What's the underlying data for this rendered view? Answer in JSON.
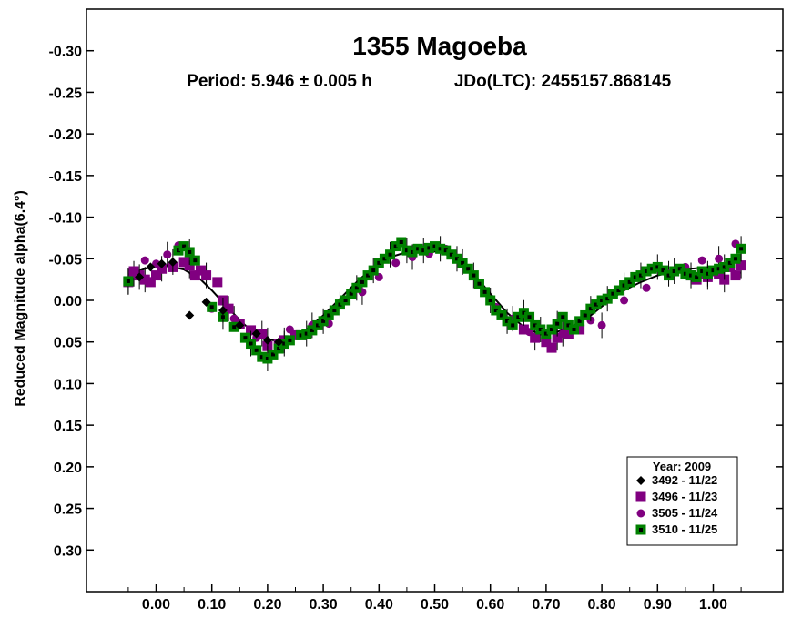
{
  "chart_data": {
    "type": "scatter",
    "title": "1355 Magoeba",
    "subtitle_period": "Period: 5.946 ± 0.005 h",
    "subtitle_epoch": "JDo(LTC): 2455157.868145",
    "ylabel": "Reduced Magnitude alpha(6.4°)",
    "xlabel": "",
    "xlim": [
      -0.125,
      1.125
    ],
    "ylim": [
      0.35,
      -0.35
    ],
    "y_inverted": true,
    "x_ticks": [
      0.0,
      0.1,
      0.2,
      0.3,
      0.4,
      0.5,
      0.6,
      0.7,
      0.8,
      0.9,
      1.0
    ],
    "x_tick_labels": [
      "0.00",
      "0.10",
      "0.20",
      "0.30",
      "0.40",
      "0.50",
      "0.60",
      "0.70",
      "0.80",
      "0.90",
      "1.00"
    ],
    "y_ticks": [
      -0.3,
      -0.25,
      -0.2,
      -0.15,
      -0.1,
      -0.05,
      0.0,
      0.05,
      0.1,
      0.15,
      0.2,
      0.25,
      0.3
    ],
    "y_tick_labels": [
      "-0.30",
      "-0.25",
      "-0.20",
      "-0.15",
      "-0.10",
      "-0.05",
      "0.00",
      "0.05",
      "0.10",
      "0.15",
      "0.20",
      "0.25",
      "0.30"
    ],
    "grid": false,
    "legend": {
      "title": "Year: 2009",
      "placement": "bottom-right",
      "entries": [
        {
          "label": "3492 - 11/22",
          "marker": "diamond",
          "color": "#000000"
        },
        {
          "label": "3496 - 11/23",
          "marker": "square",
          "color": "#800080"
        },
        {
          "label": "3505 - 11/24",
          "marker": "circle",
          "color": "#800080"
        },
        {
          "label": "3510 - 11/25",
          "marker": "square-dot",
          "color": "#008000"
        }
      ]
    },
    "fit_curve": {
      "x": [
        -0.05,
        -0.02,
        0.0,
        0.02,
        0.05,
        0.08,
        0.1,
        0.13,
        0.16,
        0.19,
        0.21,
        0.24,
        0.27,
        0.3,
        0.33,
        0.36,
        0.39,
        0.42,
        0.45,
        0.48,
        0.51,
        0.54,
        0.57,
        0.6,
        0.63,
        0.66,
        0.69,
        0.72,
        0.75,
        0.78,
        0.81,
        0.84,
        0.87,
        0.9,
        0.93,
        0.96,
        0.99,
        1.02,
        1.05
      ],
      "y": [
        -0.031,
        -0.038,
        -0.041,
        -0.042,
        -0.037,
        -0.025,
        -0.012,
        0.01,
        0.03,
        0.044,
        0.048,
        0.045,
        0.035,
        0.018,
        -0.002,
        -0.022,
        -0.04,
        -0.052,
        -0.058,
        -0.06,
        -0.058,
        -0.05,
        -0.032,
        -0.008,
        0.015,
        0.032,
        0.041,
        0.038,
        0.03,
        0.018,
        0.002,
        -0.012,
        -0.022,
        -0.03,
        -0.035,
        -0.038,
        -0.04,
        -0.038,
        -0.033
      ],
      "color": "#000000"
    },
    "series": [
      {
        "name": "3492 - 11/22",
        "marker": "diamond",
        "color": "#000000",
        "x": [
          -0.03,
          -0.01,
          0.01,
          0.03,
          0.06,
          0.09,
          0.12,
          0.15,
          0.18,
          0.2,
          0.22
        ],
        "y": [
          -0.028,
          -0.04,
          -0.044,
          -0.046,
          0.018,
          0.002,
          0.012,
          0.03,
          0.04,
          0.048,
          0.05
        ]
      },
      {
        "name": "3496 - 11/23",
        "marker": "square",
        "color": "#800080",
        "x": [
          -0.05,
          -0.04,
          -0.03,
          -0.02,
          -0.01,
          0.0,
          0.01,
          0.03,
          0.05,
          0.06,
          0.07,
          0.08,
          0.09,
          0.11,
          0.12,
          0.13,
          0.15,
          0.17,
          0.19,
          0.2,
          0.22,
          0.23,
          0.25,
          0.66,
          0.68,
          0.7,
          0.71,
          0.72,
          0.74,
          0.76,
          0.96,
          0.97,
          0.98,
          0.99,
          1.0,
          1.01,
          1.02,
          1.03,
          1.04,
          1.05
        ],
        "y": [
          -0.022,
          -0.035,
          -0.03,
          -0.025,
          -0.022,
          -0.03,
          -0.038,
          -0.04,
          -0.046,
          -0.042,
          -0.03,
          -0.036,
          -0.03,
          -0.022,
          0.0,
          0.01,
          0.028,
          0.036,
          0.04,
          0.055,
          0.052,
          0.048,
          0.042,
          0.035,
          0.045,
          0.05,
          0.057,
          0.045,
          0.04,
          0.035,
          -0.03,
          -0.025,
          -0.032,
          -0.028,
          -0.035,
          -0.032,
          -0.025,
          -0.04,
          -0.03,
          -0.042
        ]
      },
      {
        "name": "3505 - 11/24",
        "marker": "circle",
        "color": "#800080",
        "x": [
          -0.04,
          -0.02,
          0.0,
          0.02,
          0.04,
          0.1,
          0.14,
          0.18,
          0.24,
          0.28,
          0.31,
          0.34,
          0.37,
          0.4,
          0.43,
          0.46,
          0.49,
          0.52,
          0.55,
          0.58,
          0.61,
          0.64,
          0.67,
          0.7,
          0.73,
          0.76,
          0.78,
          0.8,
          0.84,
          0.88,
          0.92,
          0.95,
          0.98,
          1.01,
          1.04
        ],
        "y": [
          -0.032,
          -0.048,
          -0.044,
          -0.055,
          -0.066,
          0.01,
          0.022,
          0.045,
          0.035,
          0.03,
          0.028,
          0.0,
          -0.01,
          -0.028,
          -0.045,
          -0.052,
          -0.056,
          -0.062,
          -0.046,
          -0.02,
          0.008,
          0.022,
          0.038,
          0.042,
          0.04,
          0.032,
          0.024,
          0.03,
          0.0,
          -0.015,
          -0.032,
          -0.04,
          -0.048,
          -0.05,
          -0.068
        ]
      },
      {
        "name": "3510 - 11/25",
        "marker": "square-dot",
        "color": "#008000",
        "x": [
          -0.05,
          0.04,
          0.05,
          0.06,
          0.07,
          0.1,
          0.12,
          0.14,
          0.16,
          0.17,
          0.18,
          0.19,
          0.2,
          0.21,
          0.22,
          0.23,
          0.24,
          0.26,
          0.27,
          0.28,
          0.29,
          0.3,
          0.31,
          0.32,
          0.33,
          0.34,
          0.35,
          0.36,
          0.37,
          0.38,
          0.39,
          0.4,
          0.41,
          0.42,
          0.43,
          0.44,
          0.45,
          0.46,
          0.47,
          0.48,
          0.49,
          0.5,
          0.51,
          0.52,
          0.53,
          0.54,
          0.55,
          0.56,
          0.57,
          0.58,
          0.59,
          0.6,
          0.61,
          0.62,
          0.63,
          0.64,
          0.65,
          0.66,
          0.67,
          0.68,
          0.69,
          0.7,
          0.71,
          0.72,
          0.73,
          0.74,
          0.75,
          0.76,
          0.77,
          0.78,
          0.79,
          0.8,
          0.81,
          0.82,
          0.83,
          0.84,
          0.85,
          0.86,
          0.87,
          0.88,
          0.89,
          0.9,
          0.91,
          0.92,
          0.93,
          0.94,
          0.95,
          0.96,
          0.97,
          0.98,
          0.99,
          1.0,
          1.01,
          1.02,
          1.03,
          1.04,
          1.05
        ],
        "y": [
          -0.023,
          -0.06,
          -0.065,
          -0.058,
          -0.048,
          0.008,
          0.02,
          0.032,
          0.045,
          0.052,
          0.06,
          0.068,
          0.07,
          0.065,
          0.058,
          0.052,
          0.048,
          0.042,
          0.04,
          0.036,
          0.03,
          0.025,
          0.018,
          0.012,
          0.005,
          0.0,
          -0.008,
          -0.015,
          -0.022,
          -0.03,
          -0.036,
          -0.045,
          -0.05,
          -0.055,
          -0.065,
          -0.07,
          -0.06,
          -0.058,
          -0.062,
          -0.06,
          -0.063,
          -0.065,
          -0.062,
          -0.06,
          -0.055,
          -0.05,
          -0.045,
          -0.038,
          -0.03,
          -0.02,
          -0.01,
          0.0,
          0.012,
          0.018,
          0.025,
          0.03,
          0.02,
          0.015,
          0.02,
          0.03,
          0.035,
          0.04,
          0.035,
          0.028,
          0.02,
          0.03,
          0.035,
          0.025,
          0.018,
          0.01,
          0.005,
          0.0,
          -0.002,
          -0.008,
          -0.012,
          -0.018,
          -0.022,
          -0.028,
          -0.03,
          -0.035,
          -0.038,
          -0.04,
          -0.036,
          -0.03,
          -0.035,
          -0.038,
          -0.032,
          -0.03,
          -0.028,
          -0.035,
          -0.032,
          -0.036,
          -0.038,
          -0.04,
          -0.045,
          -0.05,
          -0.062
        ]
      }
    ]
  }
}
